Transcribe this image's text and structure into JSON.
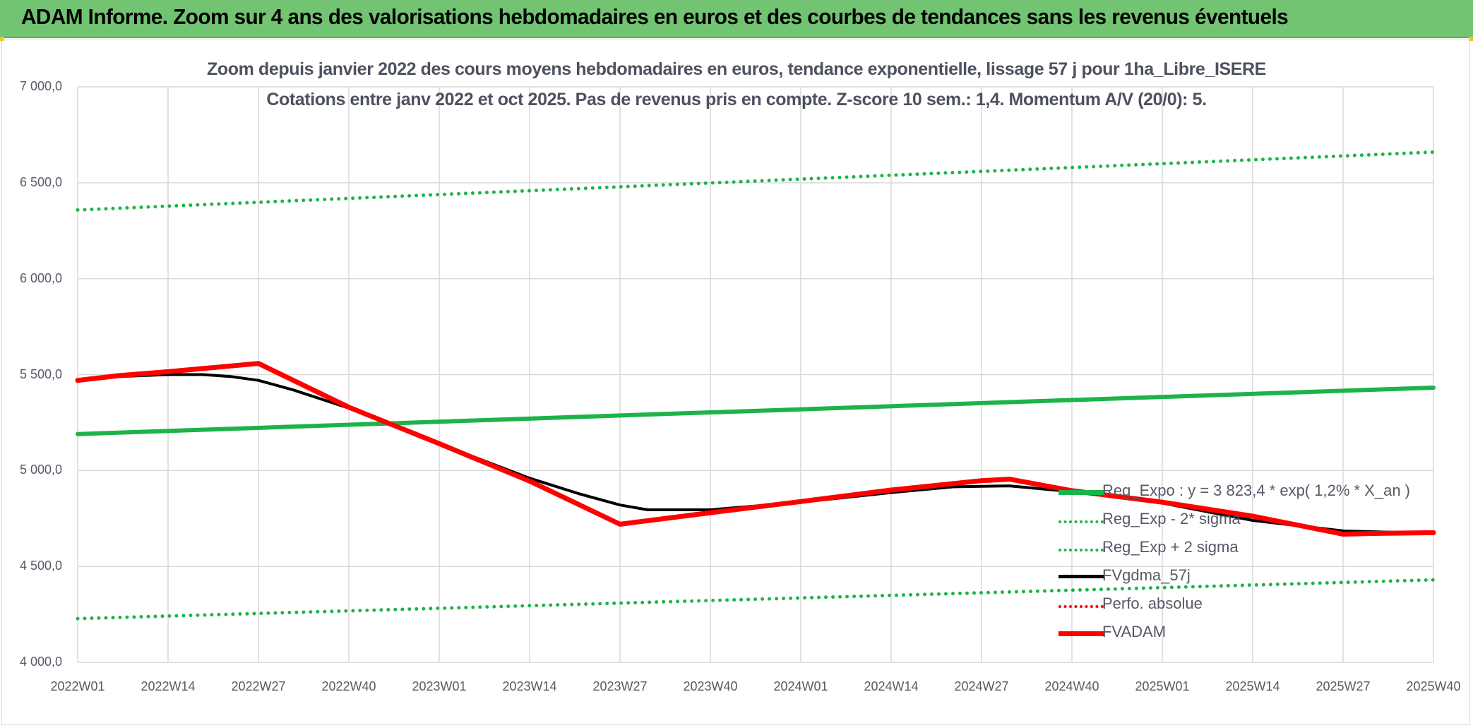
{
  "banner": {
    "title": "ADAM Informe. Zoom sur 4 ans des valorisations hebdomadaires en euros et des courbes de tendances sans les revenus éventuels"
  },
  "colors": {
    "banner": "#72c472",
    "trend": "#1db34a",
    "band": "#1db34a",
    "smooth": "#000000",
    "price": "#ff0000",
    "perf": "#ff0000",
    "grid": "#d9d9d9"
  },
  "chart_data": {
    "type": "line",
    "title": "Zoom depuis janvier 2022 des cours moyens hebdomadaires en euros, tendance exponentielle, lissage 57 j pour 1ha_Libre_ISERE",
    "subtitle": "Cotations entre janv 2022 et oct 2025. Pas de revenus pris en compte. Z-score 10 sem.: 1,4. Momentum A/V (20/0): 5.",
    "xlabel": "",
    "ylabel": "",
    "ylim": [
      4000,
      7000
    ],
    "y_ticks": [
      "4 000,0",
      "4 500,0",
      "5 000,0",
      "5 500,0",
      "6 000,0",
      "6 500,0",
      "7 000,0"
    ],
    "x_ticks": [
      "2022W01",
      "2022W14",
      "2022W27",
      "2022W40",
      "2023W01",
      "2023W14",
      "2023W27",
      "2023W40",
      "2024W01",
      "2024W14",
      "2024W27",
      "2024W40",
      "2025W01",
      "2025W14",
      "2025W27",
      "2025W40"
    ],
    "grid": true,
    "legend_position": "bottom-right",
    "series": [
      {
        "name": "Reg_Expo : y = 3 823,4 * exp( 1,2% *  X_an )",
        "style": "solid-thick",
        "color": "#1db34a",
        "points": [
          [
            0,
            5190
          ],
          [
            195,
            5432
          ]
        ]
      },
      {
        "name": "Reg_Exp - 2* sigma",
        "style": "dotted",
        "color": "#1db34a",
        "points": [
          [
            0,
            4228
          ],
          [
            195,
            4430
          ]
        ]
      },
      {
        "name": "Reg_Exp + 2 sigma",
        "style": "dotted",
        "color": "#1db34a",
        "points": [
          [
            0,
            6358
          ],
          [
            195,
            6660
          ]
        ]
      },
      {
        "name": "FVgdma_57j",
        "style": "solid",
        "color": "#000000",
        "points": [
          [
            0,
            5470
          ],
          [
            6,
            5490
          ],
          [
            13,
            5500
          ],
          [
            18,
            5500
          ],
          [
            22,
            5490
          ],
          [
            26,
            5470
          ],
          [
            31,
            5420
          ],
          [
            39,
            5325
          ],
          [
            52,
            5140
          ],
          [
            65,
            4960
          ],
          [
            72,
            4880
          ],
          [
            78,
            4820
          ],
          [
            82,
            4795
          ],
          [
            91,
            4795
          ],
          [
            104,
            4835
          ],
          [
            117,
            4885
          ],
          [
            126,
            4915
          ],
          [
            134,
            4920
          ],
          [
            143,
            4890
          ],
          [
            156,
            4830
          ],
          [
            169,
            4740
          ],
          [
            182,
            4685
          ],
          [
            195,
            4672
          ]
        ]
      },
      {
        "name": "Perfo. absolue",
        "style": "dotted",
        "color": "#ff0000",
        "points": []
      },
      {
        "name": "FVADAM",
        "style": "solid-thick",
        "color": "#ff0000",
        "points": [
          [
            0,
            5470
          ],
          [
            6,
            5495
          ],
          [
            13,
            5515
          ],
          [
            22,
            5545
          ],
          [
            26,
            5558
          ],
          [
            39,
            5330
          ],
          [
            52,
            5140
          ],
          [
            65,
            4945
          ],
          [
            78,
            4720
          ],
          [
            91,
            4780
          ],
          [
            104,
            4838
          ],
          [
            117,
            4898
          ],
          [
            130,
            4947
          ],
          [
            134,
            4955
          ],
          [
            143,
            4895
          ],
          [
            156,
            4835
          ],
          [
            169,
            4762
          ],
          [
            182,
            4668
          ],
          [
            187,
            4672
          ],
          [
            195,
            4676
          ]
        ]
      }
    ]
  }
}
